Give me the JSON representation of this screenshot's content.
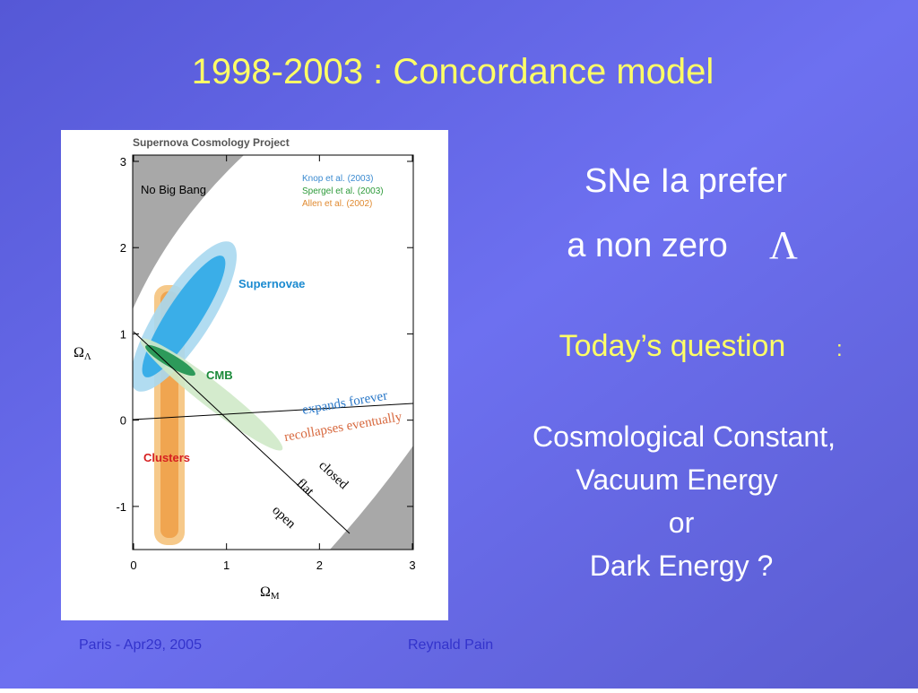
{
  "slide": {
    "title": "1998-2003 : Concordance model",
    "figure": {
      "title": "Supernova Cosmology Project",
      "xlim": [
        0,
        3
      ],
      "ylim": [
        -1.5,
        3
      ],
      "xticks": [
        0,
        1,
        2,
        3
      ],
      "yticks": [
        -1,
        0,
        1,
        2,
        3
      ],
      "x_label": {
        "symbol": "Ω",
        "subscript": "M"
      },
      "y_label": {
        "symbol": "Ω",
        "subscript": "Λ"
      },
      "regions": [
        "No Big Bang",
        "Supernovae",
        "CMB",
        "Clusters"
      ],
      "legend": [
        "Knop et al. (2003)",
        "Spergel et al.  (2003)",
        "Allen et al.  (2002)"
      ],
      "line_labels": [
        "expands forever",
        "recollapses eventually",
        "closed",
        "flat",
        "open"
      ]
    },
    "text": {
      "line1": "SNe Ia prefer",
      "line2": "a non zero",
      "lambda": "Λ",
      "question": "Today’s question",
      "question_colon": ":",
      "answers": [
        "Cosmological Constant,",
        "Vacuum Energy",
        "or",
        "Dark Energy ?"
      ]
    },
    "footer": {
      "left": "Paris - Apr29, 2005",
      "center": "Reynald Pain"
    }
  }
}
